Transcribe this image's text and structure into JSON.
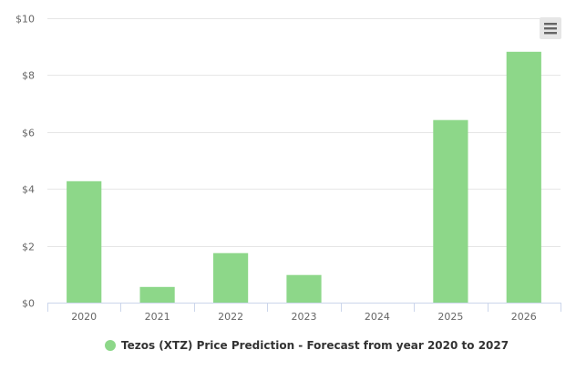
{
  "chart_data": {
    "type": "bar",
    "categories": [
      "2020",
      "2021",
      "2022",
      "2023",
      "2024",
      "2025",
      "2026"
    ],
    "series": [
      {
        "name": "Tezos (XTZ) Price Prediction - Forecast from year 2020 to 2027",
        "values": [
          4.27,
          0.55,
          1.74,
          0.97,
          0.0,
          6.42,
          8.82
        ],
        "color": "#8dd789"
      }
    ],
    "y_tick_labels": [
      "$0",
      "$2",
      "$4",
      "$6",
      "$8",
      "$10"
    ],
    "ylim": [
      0,
      10
    ],
    "grid": true,
    "legend_position": "bottom-center"
  },
  "toolbar": {
    "menu_icon": "hamburger-menu-icon"
  }
}
